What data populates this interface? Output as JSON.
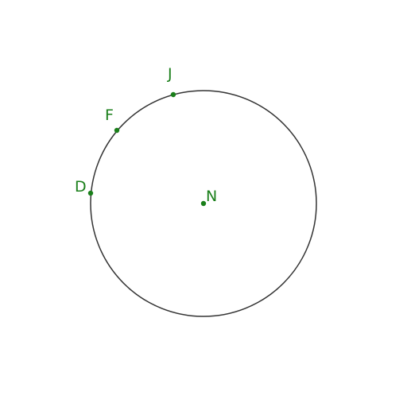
{
  "diagram": {
    "stroke_color": "#333333",
    "point_color": "#1a7f1a",
    "circle": {
      "center": "N",
      "passes_through": [
        "J",
        "F",
        "D"
      ]
    },
    "points": [
      {
        "id": "N",
        "label": "N"
      },
      {
        "id": "J",
        "label": "J"
      },
      {
        "id": "F",
        "label": "F"
      },
      {
        "id": "D",
        "label": "D"
      }
    ]
  }
}
